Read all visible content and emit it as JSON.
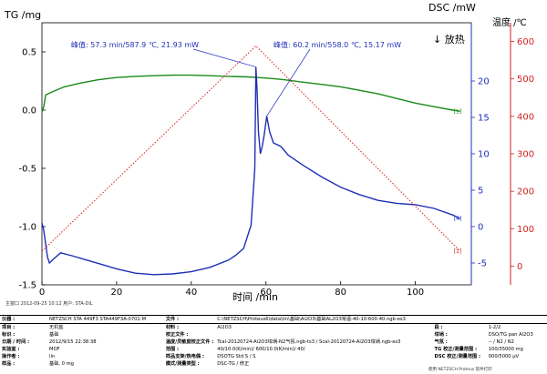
{
  "chart_data": {
    "type": "line",
    "left_axis": {
      "label": "TG /mg",
      "ylim": [
        -1.5,
        0.75
      ],
      "ticks": [
        -1.5,
        -1.0,
        -0.5,
        0.0,
        0.5
      ],
      "tick_labels": [
        "-1.5",
        "-1.0",
        "-0.5",
        "0.0",
        "0.5"
      ]
    },
    "right_axis_dsc": {
      "label": "DSC /mW",
      "ylim": [
        -8,
        28
      ],
      "ticks": [
        -5,
        0,
        5,
        10,
        15,
        20
      ],
      "tick_labels": [
        "-5",
        "0",
        "5",
        "10",
        "15",
        "20"
      ],
      "exo_label": "↓ 放热"
    },
    "right_axis_temp": {
      "label": "温度 /℃",
      "ylim": [
        -50,
        650
      ],
      "ticks": [
        0,
        100,
        200,
        300,
        400,
        500,
        600
      ],
      "tick_labels": [
        "0",
        "100",
        "200",
        "300",
        "400",
        "500",
        "600"
      ]
    },
    "x_axis": {
      "label": "时间 /min",
      "xlim": [
        0,
        115
      ],
      "ticks": [
        0,
        20,
        40,
        60,
        80,
        100
      ],
      "tick_labels": [
        "0",
        "20",
        "40",
        "60",
        "80",
        "100"
      ]
    },
    "series": [
      {
        "name": "TG",
        "color": "#1a8a1a",
        "axis": "tg",
        "marker_label": "[1]",
        "x": [
          0,
          0.5,
          1,
          3,
          6,
          10,
          15,
          20,
          25,
          30,
          35,
          40,
          45,
          50,
          55,
          58,
          62,
          65,
          70,
          75,
          80,
          85,
          90,
          95,
          100,
          105,
          110,
          112
        ],
        "y": [
          -0.02,
          0.03,
          0.13,
          0.16,
          0.2,
          0.23,
          0.26,
          0.28,
          0.29,
          0.295,
          0.3,
          0.3,
          0.295,
          0.29,
          0.285,
          0.28,
          0.27,
          0.26,
          0.24,
          0.22,
          0.2,
          0.17,
          0.14,
          0.1,
          0.06,
          0.03,
          0.0,
          -0.01
        ]
      },
      {
        "name": "DSC",
        "color": "#1e2fb8",
        "axis": "dsc",
        "marker_label": "[4]",
        "x": [
          0,
          0.5,
          1.5,
          2,
          3,
          5,
          8,
          12,
          16,
          20,
          25,
          30,
          35,
          40,
          45,
          50,
          52,
          54,
          56,
          57,
          57.3,
          57.6,
          58,
          58.5,
          59,
          59.5,
          60.2,
          61,
          62,
          64,
          66,
          70,
          75,
          80,
          85,
          90,
          95,
          100,
          105,
          110,
          112
        ],
        "y": [
          0.5,
          -0.5,
          -4.2,
          -5.0,
          -4.5,
          -3.6,
          -4.0,
          -4.6,
          -5.2,
          -5.8,
          -6.4,
          -6.6,
          -6.5,
          -6.2,
          -5.6,
          -4.6,
          -3.9,
          -3.0,
          0.2,
          8.0,
          21.93,
          19.0,
          13.0,
          10.0,
          11.0,
          12.5,
          15.17,
          13.0,
          11.5,
          11.0,
          9.8,
          8.4,
          6.8,
          5.4,
          4.4,
          3.6,
          3.2,
          3.0,
          2.5,
          1.6,
          1.1
        ]
      },
      {
        "name": "温度",
        "color": "#d42020",
        "axis": "temp",
        "marker_label": "[1]",
        "dashed": true,
        "x": [
          0,
          57.3,
          112
        ],
        "y": [
          40,
          587.9,
          40
        ]
      }
    ],
    "annotations": [
      {
        "text": "峰值: 57.3 min/587.9 ℃, 21.93 mW",
        "x": 57.3,
        "y_dsc": 21.93
      },
      {
        "text": "峰值: 60.2 min/558.0 ℃, 15.17 mW",
        "x": 60.2,
        "y_dsc": 15.17
      }
    ],
    "grid": false
  },
  "footer": {
    "date_left": "主窗口    2012-09-25 10:12    用户: STA-DIL",
    "rows": [
      [
        "仪器 :",
        "NETZSCH STA 449F3 STA449F3A-0701-M",
        "文件 :",
        "C:\\NETZSCH\\Proteus6\\data\\lin\\基础\\Al2O3\\基础AL2O3常温-40-10-600-40.ngb-es3",
        "",
        "",
        "",
        ""
      ],
      [
        "项目 :",
        "无机盐",
        "材料 :",
        "Al2O3",
        "段 :",
        "",
        "1-2/2",
        ""
      ],
      [
        "标识 :",
        "基础",
        "校正文件 :",
        "",
        "坩埚 :",
        "",
        "DSO/TG pan Al2O3",
        ""
      ],
      [
        "日期 / 时间 :",
        "2012/9/15 22:38:38",
        "温度/灵敏度校正文件 :",
        "Tcal-20120724-Al2O3坩埚-N2气氛.ngb-ts3 / Scal-20120724-Al2O3坩埚.ngb-es3",
        "气氛 :",
        "",
        "-- / N2 / N2",
        ""
      ],
      [
        "实验室 :",
        "MOF",
        "范围 :",
        "40/10.0(K/min)/ 600/10.0(K/min)/  40/",
        "TG 校正/测量范围 :",
        "",
        "100/35000 mg",
        ""
      ],
      [
        "操作者 :",
        "lin",
        "样品支架/热电偶 :",
        "DSOTG Std S / S",
        "DSC 校正/测量范围 :",
        "",
        "000/5000 μV",
        ""
      ],
      [
        "样品 :",
        "基础, 0 mg",
        "模式/测量类型 :",
        "DSC-TG / 修正",
        "",
        "",
        "",
        ""
      ]
    ],
    "software_note": "使用 NETZSCH Proteus 软件打印"
  }
}
